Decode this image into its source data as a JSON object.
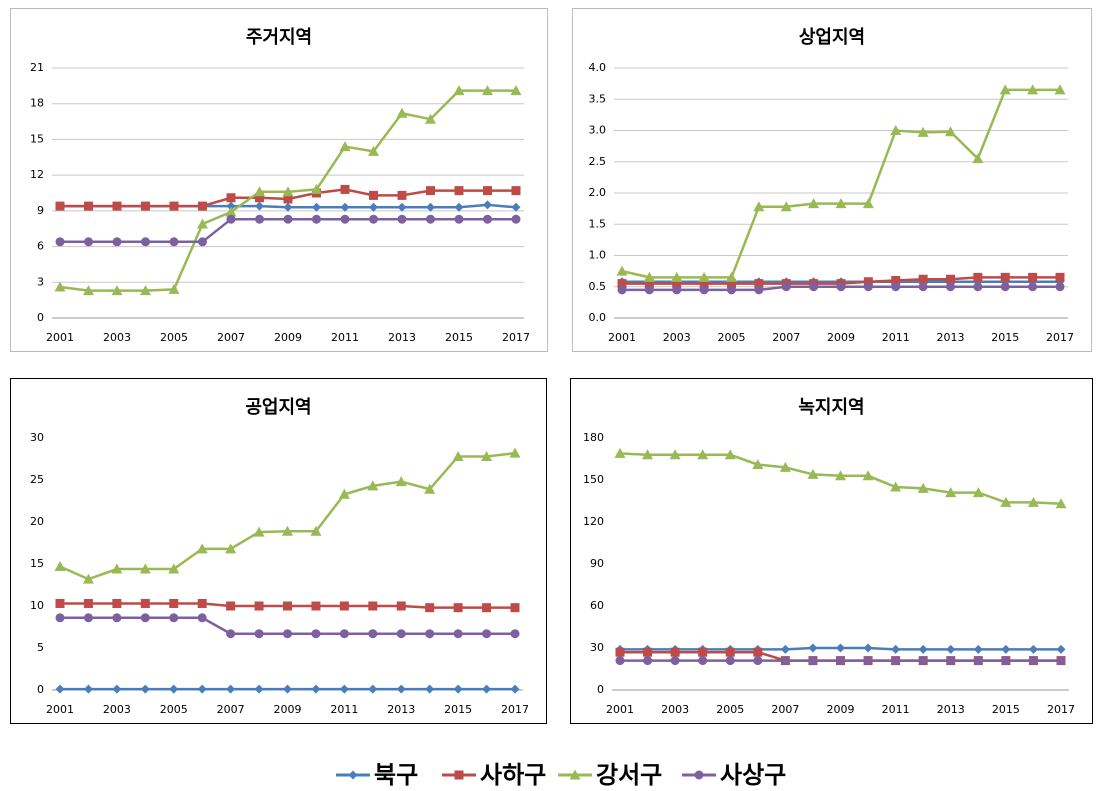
{
  "chart_data": [
    {
      "type": "line",
      "title": "주거지역",
      "categories": [
        "2001",
        null,
        "2003",
        null,
        "2005",
        null,
        "2007",
        null,
        "2009",
        null,
        "2011",
        null,
        "2013",
        null,
        "2015",
        null,
        "2017"
      ],
      "ylim": [
        0,
        21
      ],
      "yticks": [
        0,
        3,
        6,
        9,
        12,
        15,
        18,
        21
      ],
      "grid": true,
      "series": [
        {
          "name": "북구",
          "color": "#4a7ebb",
          "marker": "diamond",
          "values": [
            9.4,
            9.4,
            9.4,
            9.4,
            9.4,
            9.4,
            9.4,
            9.4,
            9.3,
            9.3,
            9.3,
            9.3,
            9.3,
            9.3,
            9.3,
            9.5,
            9.3
          ]
        },
        {
          "name": "사하구",
          "color": "#be4b48",
          "marker": "square",
          "values": [
            9.4,
            9.4,
            9.4,
            9.4,
            9.4,
            9.4,
            10.1,
            10.1,
            10.0,
            10.5,
            10.8,
            10.3,
            10.3,
            10.7,
            10.7,
            10.7,
            10.7
          ]
        },
        {
          "name": "강서구",
          "color": "#98b954",
          "marker": "triangle",
          "values": [
            2.6,
            2.3,
            2.3,
            2.3,
            2.4,
            7.9,
            8.9,
            10.6,
            10.6,
            10.8,
            14.4,
            14.0,
            17.2,
            16.7,
            19.1,
            19.1,
            19.1
          ]
        },
        {
          "name": "사상구",
          "color": "#7d60a0",
          "marker": "circle",
          "values": [
            6.4,
            6.4,
            6.4,
            6.4,
            6.4,
            6.4,
            8.3,
            8.3,
            8.3,
            8.3,
            8.3,
            8.3,
            8.3,
            8.3,
            8.3,
            8.3,
            8.3
          ]
        }
      ]
    },
    {
      "type": "line",
      "title": "상업지역",
      "categories": [
        "2001",
        null,
        "2003",
        null,
        "2005",
        null,
        "2007",
        null,
        "2009",
        null,
        "2011",
        null,
        "2013",
        null,
        "2015",
        null,
        "2017"
      ],
      "ylim": [
        0,
        4
      ],
      "yticks": [
        {
          "value": 0,
          "label": "0.0"
        },
        0.5,
        {
          "value": 1,
          "label": "1.0"
        },
        1.5,
        {
          "value": 2,
          "label": "2.0"
        },
        2.5,
        {
          "value": 3,
          "label": "3.0"
        },
        3.5,
        {
          "value": 4,
          "label": "4.0"
        }
      ],
      "grid": true,
      "series": [
        {
          "name": "북구",
          "color": "#4a7ebb",
          "marker": "diamond",
          "values": [
            0.58,
            0.58,
            0.58,
            0.58,
            0.58,
            0.58,
            0.58,
            0.58,
            0.58,
            0.58,
            0.58,
            0.58,
            0.58,
            0.58,
            0.58,
            0.58,
            0.58
          ]
        },
        {
          "name": "사하구",
          "color": "#be4b48",
          "marker": "square",
          "values": [
            0.55,
            0.55,
            0.55,
            0.55,
            0.55,
            0.55,
            0.55,
            0.55,
            0.55,
            0.58,
            0.6,
            0.62,
            0.62,
            0.65,
            0.65,
            0.65,
            0.65
          ]
        },
        {
          "name": "강서구",
          "color": "#98b954",
          "marker": "triangle",
          "values": [
            0.75,
            0.65,
            0.65,
            0.65,
            0.65,
            1.78,
            1.78,
            1.83,
            1.83,
            1.83,
            3.0,
            2.97,
            2.98,
            2.55,
            3.65,
            3.65,
            3.65
          ]
        },
        {
          "name": "사상구",
          "color": "#7d60a0",
          "marker": "circle",
          "values": [
            0.45,
            0.45,
            0.45,
            0.45,
            0.45,
            0.45,
            0.5,
            0.5,
            0.5,
            0.5,
            0.5,
            0.5,
            0.5,
            0.5,
            0.5,
            0.5,
            0.5
          ]
        }
      ]
    },
    {
      "type": "line",
      "title": "공업지역",
      "categories": [
        "2001",
        null,
        "2003",
        null,
        "2005",
        null,
        "2007",
        null,
        "2009",
        null,
        "2011",
        null,
        "2013",
        null,
        "2015",
        null,
        "2017"
      ],
      "ylim": [
        0,
        30
      ],
      "yticks": [
        0,
        5,
        10,
        15,
        20,
        25,
        30
      ],
      "grid": false,
      "series": [
        {
          "name": "북구",
          "color": "#4a7ebb",
          "marker": "diamond",
          "values": [
            0.1,
            0.1,
            0.1,
            0.1,
            0.1,
            0.1,
            0.1,
            0.1,
            0.1,
            0.1,
            0.1,
            0.1,
            0.1,
            0.1,
            0.1,
            0.1,
            0.1
          ]
        },
        {
          "name": "사하구",
          "color": "#be4b48",
          "marker": "square",
          "values": [
            10.3,
            10.3,
            10.3,
            10.3,
            10.3,
            10.3,
            10.0,
            10.0,
            10.0,
            10.0,
            10.0,
            10.0,
            10.0,
            9.8,
            9.8,
            9.8,
            9.8
          ]
        },
        {
          "name": "강서구",
          "color": "#98b954",
          "marker": "triangle",
          "values": [
            14.7,
            13.2,
            14.4,
            14.4,
            14.4,
            16.8,
            16.8,
            18.8,
            18.9,
            18.9,
            23.3,
            24.3,
            24.8,
            23.9,
            27.8,
            27.8,
            28.2
          ]
        },
        {
          "name": "사상구",
          "color": "#7d60a0",
          "marker": "circle",
          "values": [
            8.6,
            8.6,
            8.6,
            8.6,
            8.6,
            8.6,
            6.7,
            6.7,
            6.7,
            6.7,
            6.7,
            6.7,
            6.7,
            6.7,
            6.7,
            6.7,
            6.7
          ]
        }
      ]
    },
    {
      "type": "line",
      "title": "녹지지역",
      "categories": [
        "2001",
        null,
        "2003",
        null,
        "2005",
        null,
        "2007",
        null,
        "2009",
        null,
        "2011",
        null,
        "2013",
        null,
        "2015",
        null,
        "2017"
      ],
      "ylim": [
        0,
        180
      ],
      "yticks": [
        0,
        30,
        60,
        90,
        120,
        150,
        180
      ],
      "grid": false,
      "series": [
        {
          "name": "북구",
          "color": "#4a7ebb",
          "marker": "diamond",
          "values": [
            29,
            29,
            29,
            29,
            29,
            29,
            29,
            30,
            30,
            30,
            29,
            29,
            29,
            29,
            29,
            29,
            29
          ]
        },
        {
          "name": "사하구",
          "color": "#be4b48",
          "marker": "square",
          "values": [
            27,
            27,
            27,
            27,
            27,
            27,
            21,
            21,
            21,
            21,
            21,
            21,
            21,
            21,
            21,
            21,
            21
          ]
        },
        {
          "name": "강서구",
          "color": "#98b954",
          "marker": "triangle",
          "values": [
            169,
            168,
            168,
            168,
            168,
            161,
            159,
            154,
            153,
            153,
            145,
            144,
            141,
            141,
            134,
            134,
            133
          ]
        },
        {
          "name": "사상구",
          "color": "#7d60a0",
          "marker": "circle",
          "values": [
            21,
            21,
            21,
            21,
            21,
            21,
            21,
            21,
            21,
            21,
            21,
            21,
            21,
            21,
            21,
            21,
            21
          ]
        }
      ]
    }
  ]
}
